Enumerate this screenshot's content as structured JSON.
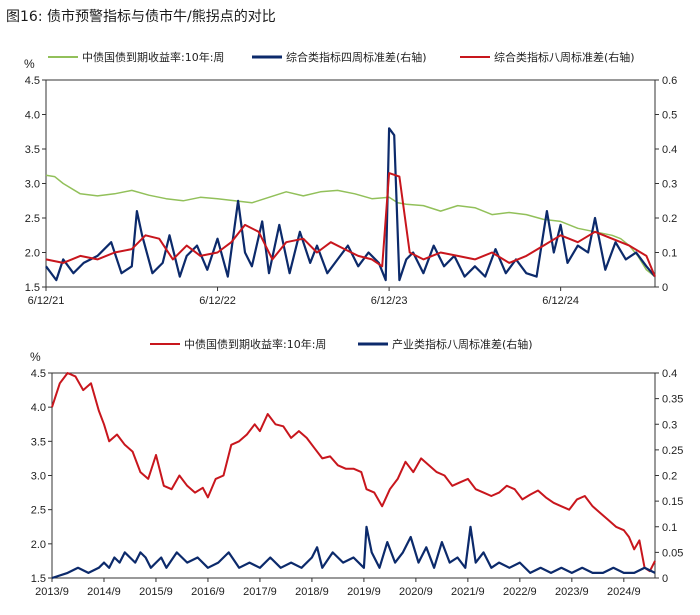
{
  "figure_title": "图16: 债市预警指标与债市牛/熊拐点的对比",
  "colors": {
    "green": "#92c05a",
    "navy": "#0c2a6b",
    "red": "#c8161d"
  },
  "chart_data": [
    {
      "type": "line",
      "left_unit": "%",
      "ylim_left": [
        1.5,
        4.5
      ],
      "left_ticks": [
        "1.5",
        "2.0",
        "2.5",
        "3.0",
        "3.5",
        "4.0",
        "4.5"
      ],
      "ylim_right": [
        0,
        0.6
      ],
      "right_ticks": [
        "0",
        "0.1",
        "0.2",
        "0.3",
        "0.4",
        "0.5",
        "0.6"
      ],
      "x_tick_labels": [
        "6/12/21",
        "6/12/22",
        "6/12/23",
        "6/12/24"
      ],
      "x_range": [
        0,
        3.55
      ],
      "x_tick_positions": [
        0,
        1,
        2,
        3
      ],
      "legend": [
        "中债国债到期收益率:10年:周",
        "综合类指标四周标准差(右轴)",
        "综合类指标八周标准差(右轴)"
      ],
      "series": [
        {
          "name": "中债国债到期收益率:10年:周",
          "axis": "left",
          "color": "green",
          "x": [
            0,
            0.05,
            0.1,
            0.2,
            0.3,
            0.4,
            0.5,
            0.6,
            0.7,
            0.8,
            0.9,
            1.0,
            1.1,
            1.2,
            1.3,
            1.4,
            1.5,
            1.6,
            1.7,
            1.8,
            1.9,
            2.0,
            2.05,
            2.1,
            2.2,
            2.3,
            2.4,
            2.5,
            2.6,
            2.7,
            2.8,
            2.9,
            3.0,
            3.1,
            3.2,
            3.3,
            3.35,
            3.4,
            3.45,
            3.5,
            3.55
          ],
          "y": [
            3.12,
            3.1,
            3.0,
            2.85,
            2.82,
            2.85,
            2.9,
            2.83,
            2.78,
            2.75,
            2.8,
            2.78,
            2.75,
            2.72,
            2.8,
            2.88,
            2.82,
            2.88,
            2.9,
            2.85,
            2.78,
            2.8,
            2.72,
            2.7,
            2.68,
            2.6,
            2.68,
            2.65,
            2.55,
            2.58,
            2.55,
            2.48,
            2.45,
            2.35,
            2.3,
            2.25,
            2.2,
            2.1,
            1.95,
            1.75,
            1.65
          ]
        },
        {
          "name": "综合类指标四周标准差(右轴)",
          "axis": "right",
          "color": "navy",
          "x": [
            0,
            0.06,
            0.1,
            0.16,
            0.22,
            0.3,
            0.38,
            0.44,
            0.5,
            0.53,
            0.56,
            0.62,
            0.68,
            0.72,
            0.78,
            0.82,
            0.88,
            0.94,
            1.0,
            1.06,
            1.12,
            1.16,
            1.2,
            1.26,
            1.3,
            1.36,
            1.42,
            1.48,
            1.54,
            1.58,
            1.64,
            1.7,
            1.76,
            1.82,
            1.88,
            1.94,
            1.98,
            2.0,
            2.03,
            2.06,
            2.1,
            2.14,
            2.2,
            2.26,
            2.32,
            2.38,
            2.44,
            2.5,
            2.56,
            2.62,
            2.68,
            2.74,
            2.8,
            2.86,
            2.92,
            2.96,
            3.0,
            3.04,
            3.1,
            3.16,
            3.2,
            3.26,
            3.32,
            3.38,
            3.44,
            3.5,
            3.55
          ],
          "y": [
            0.06,
            0.02,
            0.08,
            0.04,
            0.07,
            0.09,
            0.13,
            0.04,
            0.06,
            0.22,
            0.15,
            0.04,
            0.07,
            0.15,
            0.03,
            0.09,
            0.12,
            0.05,
            0.14,
            0.03,
            0.25,
            0.1,
            0.06,
            0.19,
            0.04,
            0.18,
            0.04,
            0.16,
            0.07,
            0.12,
            0.04,
            0.08,
            0.12,
            0.06,
            0.1,
            0.07,
            0.02,
            0.46,
            0.44,
            0.02,
            0.08,
            0.1,
            0.04,
            0.12,
            0.06,
            0.09,
            0.03,
            0.06,
            0.03,
            0.11,
            0.04,
            0.08,
            0.04,
            0.03,
            0.22,
            0.1,
            0.18,
            0.07,
            0.12,
            0.1,
            0.2,
            0.05,
            0.13,
            0.08,
            0.1,
            0.06,
            0.03
          ]
        },
        {
          "name": "综合类指标八周标准差(右轴)",
          "axis": "right",
          "color": "red",
          "x": [
            0,
            0.1,
            0.2,
            0.3,
            0.4,
            0.5,
            0.58,
            0.66,
            0.74,
            0.82,
            0.9,
            1.0,
            1.08,
            1.16,
            1.24,
            1.32,
            1.4,
            1.5,
            1.58,
            1.66,
            1.74,
            1.82,
            1.9,
            1.96,
            2.0,
            2.06,
            2.12,
            2.2,
            2.3,
            2.4,
            2.5,
            2.6,
            2.7,
            2.8,
            2.9,
            3.0,
            3.1,
            3.2,
            3.3,
            3.4,
            3.5,
            3.55
          ],
          "y": [
            0.08,
            0.07,
            0.09,
            0.08,
            0.1,
            0.11,
            0.15,
            0.14,
            0.08,
            0.12,
            0.09,
            0.1,
            0.13,
            0.18,
            0.16,
            0.08,
            0.13,
            0.14,
            0.1,
            0.13,
            0.11,
            0.09,
            0.08,
            0.06,
            0.33,
            0.32,
            0.1,
            0.08,
            0.1,
            0.09,
            0.08,
            0.1,
            0.07,
            0.09,
            0.12,
            0.15,
            0.13,
            0.16,
            0.14,
            0.12,
            0.09,
            0.03
          ]
        }
      ]
    },
    {
      "type": "line",
      "left_unit": "%",
      "ylim_left": [
        1.5,
        4.5
      ],
      "left_ticks": [
        "1.5",
        "2.0",
        "2.5",
        "3.0",
        "3.5",
        "4.0",
        "4.5"
      ],
      "ylim_right": [
        0,
        0.4
      ],
      "right_ticks": [
        "0",
        "0.05",
        "0.1",
        "0.15",
        "0.2",
        "0.25",
        "0.3",
        "0.35",
        "0.4"
      ],
      "x_tick_labels": [
        "2013/9",
        "2014/9",
        "2015/9",
        "2016/9",
        "2017/9",
        "2018/9",
        "2019/9",
        "2020/9",
        "2021/9",
        "2022/9",
        "2023/9",
        "2024/9"
      ],
      "x_range": [
        0,
        11.6
      ],
      "x_tick_positions": [
        0,
        1,
        2,
        3,
        4,
        5,
        6,
        7,
        8,
        9,
        10,
        11
      ],
      "legend": [
        "中债国债到期收益率:10年:周",
        "产业类指标八周标准差(右轴)"
      ],
      "series": [
        {
          "name": "中债国债到期收益率:10年:周",
          "axis": "left",
          "color": "red",
          "x": [
            0,
            0.15,
            0.3,
            0.45,
            0.6,
            0.75,
            0.9,
            1.0,
            1.1,
            1.25,
            1.4,
            1.55,
            1.7,
            1.85,
            2.0,
            2.15,
            2.3,
            2.45,
            2.6,
            2.75,
            2.9,
            3.0,
            3.15,
            3.3,
            3.45,
            3.6,
            3.75,
            3.9,
            4.0,
            4.15,
            4.3,
            4.45,
            4.6,
            4.75,
            4.9,
            5.05,
            5.2,
            5.35,
            5.5,
            5.65,
            5.8,
            5.95,
            6.05,
            6.2,
            6.35,
            6.5,
            6.65,
            6.8,
            6.95,
            7.1,
            7.25,
            7.4,
            7.55,
            7.7,
            7.85,
            8.0,
            8.15,
            8.3,
            8.45,
            8.6,
            8.75,
            8.9,
            9.05,
            9.2,
            9.35,
            9.5,
            9.65,
            9.8,
            9.95,
            10.1,
            10.25,
            10.4,
            10.55,
            10.7,
            10.85,
            11.0,
            11.1,
            11.2,
            11.3,
            11.4,
            11.5,
            11.6
          ],
          "y": [
            4.0,
            4.35,
            4.5,
            4.45,
            4.25,
            4.35,
            3.95,
            3.75,
            3.5,
            3.6,
            3.45,
            3.35,
            3.05,
            2.95,
            3.3,
            2.85,
            2.8,
            3.0,
            2.85,
            2.75,
            2.82,
            2.68,
            2.95,
            3.0,
            3.45,
            3.5,
            3.6,
            3.75,
            3.65,
            3.9,
            3.75,
            3.72,
            3.55,
            3.65,
            3.55,
            3.4,
            3.25,
            3.28,
            3.15,
            3.1,
            3.1,
            3.05,
            2.8,
            2.75,
            2.55,
            2.8,
            2.95,
            3.2,
            3.05,
            3.25,
            3.15,
            3.05,
            3.0,
            2.85,
            2.9,
            2.95,
            2.8,
            2.75,
            2.7,
            2.75,
            2.85,
            2.8,
            2.65,
            2.72,
            2.78,
            2.68,
            2.6,
            2.55,
            2.5,
            2.65,
            2.7,
            2.55,
            2.45,
            2.35,
            2.25,
            2.2,
            2.1,
            1.92,
            2.05,
            1.65,
            1.6,
            1.75
          ]
        },
        {
          "name": "产业类指标八周标准差(右轴)",
          "axis": "right",
          "color": "navy",
          "x": [
            0,
            0.3,
            0.5,
            0.7,
            0.9,
            1.0,
            1.1,
            1.2,
            1.3,
            1.4,
            1.5,
            1.6,
            1.7,
            1.8,
            1.9,
            2.0,
            2.1,
            2.2,
            2.4,
            2.6,
            2.8,
            3.0,
            3.2,
            3.4,
            3.6,
            3.8,
            4.0,
            4.2,
            4.4,
            4.6,
            4.8,
            5.0,
            5.1,
            5.2,
            5.4,
            5.6,
            5.8,
            6.0,
            6.05,
            6.15,
            6.3,
            6.45,
            6.6,
            6.75,
            6.9,
            7.05,
            7.2,
            7.35,
            7.5,
            7.65,
            7.8,
            7.95,
            8.05,
            8.15,
            8.3,
            8.45,
            8.6,
            8.8,
            9.0,
            9.2,
            9.4,
            9.6,
            9.8,
            10.0,
            10.2,
            10.4,
            10.6,
            10.8,
            11.0,
            11.2,
            11.4,
            11.6
          ],
          "y": [
            0.0,
            0.01,
            0.02,
            0.01,
            0.02,
            0.03,
            0.02,
            0.04,
            0.03,
            0.05,
            0.04,
            0.03,
            0.05,
            0.04,
            0.02,
            0.03,
            0.04,
            0.02,
            0.05,
            0.03,
            0.04,
            0.02,
            0.03,
            0.05,
            0.02,
            0.03,
            0.02,
            0.04,
            0.02,
            0.03,
            0.02,
            0.04,
            0.06,
            0.02,
            0.05,
            0.03,
            0.04,
            0.02,
            0.1,
            0.05,
            0.02,
            0.07,
            0.03,
            0.05,
            0.08,
            0.03,
            0.06,
            0.02,
            0.07,
            0.03,
            0.04,
            0.02,
            0.1,
            0.03,
            0.05,
            0.02,
            0.03,
            0.02,
            0.03,
            0.01,
            0.02,
            0.01,
            0.02,
            0.01,
            0.02,
            0.01,
            0.01,
            0.02,
            0.01,
            0.01,
            0.02,
            0.01
          ]
        }
      ]
    }
  ]
}
